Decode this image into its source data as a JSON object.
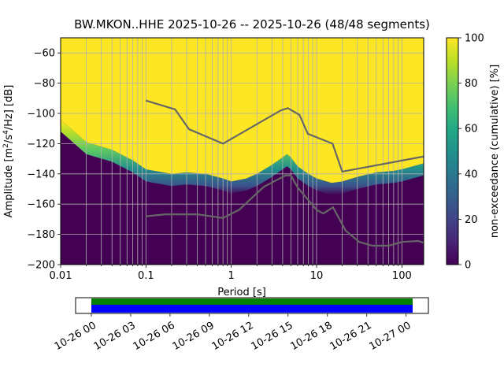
{
  "chart_data": {
    "type": "heatmap",
    "title": "BW.MKON..HHE   2025-10-26 -- 2025-10-26  (48/48 segments)",
    "xlabel": "Period [s]",
    "ylabel": "Amplitude [m²/s⁴/Hz] [dB]",
    "xscale": "log",
    "xlim": [
      0.01,
      180
    ],
    "ylim": [
      -200,
      -50
    ],
    "xticks": [
      {
        "value": 0.01,
        "label": "0.01"
      },
      {
        "value": 0.1,
        "label": "0.1"
      },
      {
        "value": 1,
        "label": "1"
      },
      {
        "value": 10,
        "label": "10"
      },
      {
        "value": 100,
        "label": "100"
      }
    ],
    "yticks": [
      -60,
      -80,
      -100,
      -120,
      -140,
      -160,
      -180,
      -200
    ],
    "colorbar": {
      "label": "non-exceedance (cumulative) [%]",
      "ticks": [
        0,
        20,
        40,
        60,
        80,
        100
      ],
      "range": [
        0,
        100
      ],
      "colormap": "viridis"
    },
    "psd_boundary": {
      "description": "lower edge of 100% (yellow) region per period",
      "period": [
        0.01,
        0.02,
        0.04,
        0.07,
        0.1,
        0.2,
        0.3,
        0.5,
        0.8,
        1.0,
        1.5,
        2.0,
        3.0,
        4.0,
        4.5,
        5.0,
        6.0,
        8.0,
        10,
        15,
        20,
        30,
        50,
        80,
        100,
        180
      ],
      "db": [
        -104,
        -119,
        -124,
        -131,
        -137,
        -140,
        -139,
        -140,
        -143,
        -145,
        -143,
        -140,
        -134,
        -129,
        -127,
        -129,
        -135,
        -140,
        -143,
        -146,
        -145,
        -142,
        -139,
        -138,
        -137,
        -133
      ]
    },
    "reference_models": [
      {
        "name": "NHNM",
        "period": [
          0.1,
          0.22,
          0.32,
          0.8,
          3.8,
          4.6,
          6.3,
          7.9,
          15.4,
          20,
          180
        ],
        "db": [
          -91.5,
          -97.4,
          -110.5,
          -120,
          -98,
          -96.5,
          -101,
          -113.5,
          -120,
          -138.5,
          -128.5
        ]
      },
      {
        "name": "NLNM",
        "period": [
          0.1,
          0.17,
          0.4,
          0.8,
          1.24,
          2.4,
          4.3,
          5,
          6,
          10,
          12,
          15.6,
          21.9,
          31.6,
          45,
          70,
          101,
          154,
          180
        ],
        "db": [
          -168,
          -166.7,
          -166.7,
          -169.2,
          -163.7,
          -148.6,
          -141.1,
          -141.1,
          -149,
          -163.8,
          -166.2,
          -162.1,
          -177.5,
          -185,
          -187.5,
          -187.5,
          -185,
          -184.4,
          -185.5
        ]
      }
    ],
    "time_axis": {
      "tick_labels": [
        "10-26 00",
        "10-26 03",
        "10-26 06",
        "10-26 09",
        "10-26 12",
        "10-26 15",
        "10-26 18",
        "10-26 21",
        "10-27 00"
      ],
      "tick_hours": [
        0,
        3,
        6,
        9,
        12,
        15,
        18,
        21,
        24
      ],
      "range_hours": [
        -1.2,
        25.7
      ],
      "data_coverage_hours": [
        0,
        24.5
      ],
      "gap_coverage_hours": [
        0,
        24.5
      ],
      "colors": {
        "data": "#008000",
        "gap": "#0000ff"
      }
    }
  }
}
